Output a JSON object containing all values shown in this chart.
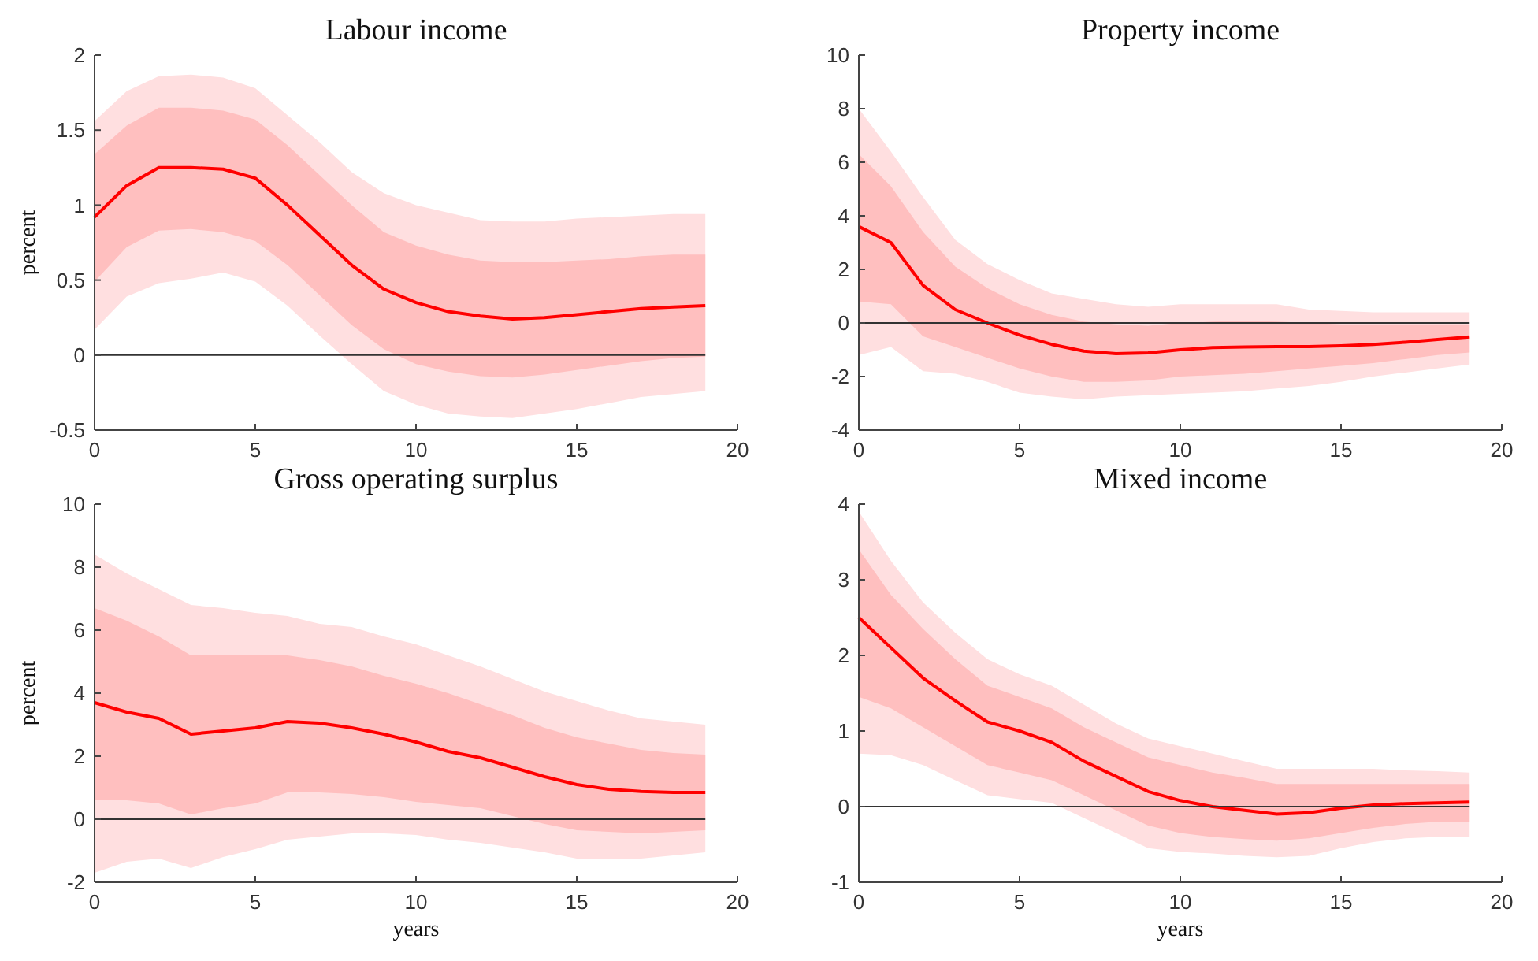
{
  "chart_data": [
    {
      "type": "line",
      "title": "Labour income",
      "ylabel": "percent",
      "x": [
        0,
        1,
        2,
        3,
        4,
        5,
        6,
        7,
        8,
        9,
        10,
        11,
        12,
        13,
        14,
        15,
        16,
        17,
        18,
        19
      ],
      "xlim": [
        0,
        20
      ],
      "xticks": [
        0,
        5,
        10,
        15,
        20
      ],
      "ylim": [
        -0.5,
        2
      ],
      "yticks": [
        -0.5,
        0,
        0.5,
        1,
        1.5,
        2
      ],
      "grid": false,
      "ref_lines": [
        {
          "axis": "y",
          "value": 0,
          "color": "#333333"
        }
      ],
      "series": [
        {
          "color": "#ffdfe0",
          "values": [
            null,
            null,
            null,
            null,
            null,
            null,
            null,
            null,
            null,
            null,
            null,
            null,
            null,
            null,
            null,
            null,
            null,
            null,
            null,
            null
          ],
          "lower": [
            0.17,
            0.39,
            0.48,
            0.51,
            0.55,
            0.49,
            0.33,
            0.13,
            -0.06,
            -0.24,
            -0.33,
            -0.39,
            -0.41,
            -0.42,
            -0.39,
            -0.36,
            -0.32,
            -0.28,
            -0.26,
            -0.24
          ],
          "upper": [
            1.56,
            1.76,
            1.86,
            1.87,
            1.85,
            1.78,
            1.6,
            1.42,
            1.22,
            1.08,
            1.0,
            0.95,
            0.9,
            0.89,
            0.89,
            0.91,
            0.92,
            0.93,
            0.94,
            0.94
          ]
        },
        {
          "color": "#ff0000",
          "values": [
            0.92,
            1.13,
            1.25,
            1.25,
            1.24,
            1.18,
            1.0,
            0.8,
            0.6,
            0.44,
            0.35,
            0.29,
            0.26,
            0.24,
            0.25,
            0.27,
            0.29,
            0.31,
            0.32,
            0.33
          ],
          "lower": [
            0.49,
            0.72,
            0.83,
            0.84,
            0.82,
            0.76,
            0.6,
            0.4,
            0.2,
            0.04,
            -0.06,
            -0.11,
            -0.14,
            -0.15,
            -0.13,
            -0.1,
            -0.07,
            -0.04,
            -0.02,
            -0.01
          ],
          "upper": [
            1.34,
            1.53,
            1.65,
            1.65,
            1.63,
            1.57,
            1.4,
            1.2,
            1.0,
            0.82,
            0.73,
            0.67,
            0.63,
            0.62,
            0.62,
            0.63,
            0.64,
            0.66,
            0.67,
            0.67
          ]
        }
      ]
    },
    {
      "type": "line",
      "title": "Property income",
      "x": [
        0,
        1,
        2,
        3,
        4,
        5,
        6,
        7,
        8,
        9,
        10,
        11,
        12,
        13,
        14,
        15,
        16,
        17,
        18,
        19
      ],
      "xlim": [
        0,
        20
      ],
      "xticks": [
        0,
        5,
        10,
        15,
        20
      ],
      "ylim": [
        -4,
        10
      ],
      "yticks": [
        -4,
        -2,
        0,
        2,
        4,
        6,
        8,
        10
      ],
      "grid": false,
      "ref_lines": [
        {
          "axis": "y",
          "value": 0,
          "color": "#333333"
        }
      ],
      "series": [
        {
          "color": "#ffdfe0",
          "values": [
            null,
            null,
            null,
            null,
            null,
            null,
            null,
            null,
            null,
            null,
            null,
            null,
            null,
            null,
            null,
            null,
            null,
            null,
            null,
            null
          ],
          "lower": [
            -1.2,
            -0.9,
            -1.8,
            -1.9,
            -2.2,
            -2.6,
            -2.75,
            -2.85,
            -2.75,
            -2.7,
            -2.65,
            -2.6,
            -2.55,
            -2.45,
            -2.35,
            -2.2,
            -2.0,
            -1.85,
            -1.7,
            -1.55
          ],
          "upper": [
            8.0,
            6.4,
            4.7,
            3.1,
            2.2,
            1.6,
            1.1,
            0.9,
            0.7,
            0.6,
            0.7,
            0.7,
            0.7,
            0.7,
            0.5,
            0.45,
            0.4,
            0.4,
            0.4,
            0.4
          ]
        },
        {
          "color": "#ff0000",
          "values": [
            3.6,
            3.0,
            1.4,
            0.5,
            0.0,
            -0.45,
            -0.8,
            -1.05,
            -1.15,
            -1.12,
            -1.0,
            -0.92,
            -0.9,
            -0.88,
            -0.88,
            -0.85,
            -0.8,
            -0.72,
            -0.62,
            -0.52
          ],
          "lower": [
            0.8,
            0.7,
            -0.5,
            -0.9,
            -1.3,
            -1.7,
            -2.0,
            -2.2,
            -2.2,
            -2.15,
            -2.0,
            -1.95,
            -1.9,
            -1.8,
            -1.7,
            -1.6,
            -1.5,
            -1.35,
            -1.2,
            -1.1
          ],
          "upper": [
            6.3,
            5.1,
            3.4,
            2.1,
            1.3,
            0.7,
            0.3,
            0.05,
            -0.05,
            -0.1,
            0.0,
            0.05,
            0.08,
            0.05,
            0.0,
            -0.05,
            -0.05,
            -0.05,
            -0.05,
            -0.05
          ]
        }
      ]
    },
    {
      "type": "line",
      "title": "Gross operating surplus",
      "xlabel": "years",
      "ylabel": "percent",
      "x": [
        0,
        1,
        2,
        3,
        4,
        5,
        6,
        7,
        8,
        9,
        10,
        11,
        12,
        13,
        14,
        15,
        16,
        17,
        18,
        19
      ],
      "xlim": [
        0,
        20
      ],
      "xticks": [
        0,
        5,
        10,
        15,
        20
      ],
      "ylim": [
        -2,
        10
      ],
      "yticks": [
        -2,
        0,
        2,
        4,
        6,
        8,
        10
      ],
      "grid": false,
      "ref_lines": [
        {
          "axis": "y",
          "value": 0,
          "color": "#333333"
        }
      ],
      "series": [
        {
          "color": "#ffdfe0",
          "values": [
            null,
            null,
            null,
            null,
            null,
            null,
            null,
            null,
            null,
            null,
            null,
            null,
            null,
            null,
            null,
            null,
            null,
            null,
            null,
            null
          ],
          "lower": [
            -1.7,
            -1.35,
            -1.25,
            -1.55,
            -1.2,
            -0.95,
            -0.65,
            -0.55,
            -0.45,
            -0.45,
            -0.5,
            -0.65,
            -0.75,
            -0.9,
            -1.05,
            -1.25,
            -1.25,
            -1.25,
            -1.15,
            -1.05
          ],
          "upper": [
            8.4,
            7.8,
            7.3,
            6.8,
            6.7,
            6.55,
            6.45,
            6.2,
            6.1,
            5.8,
            5.55,
            5.2,
            4.85,
            4.45,
            4.05,
            3.75,
            3.45,
            3.2,
            3.1,
            3.0
          ]
        },
        {
          "color": "#ff0000",
          "values": [
            3.7,
            3.4,
            3.2,
            2.7,
            2.8,
            2.9,
            3.1,
            3.05,
            2.9,
            2.7,
            2.45,
            2.15,
            1.95,
            1.65,
            1.35,
            1.1,
            0.95,
            0.88,
            0.85,
            0.85
          ],
          "lower": [
            0.6,
            0.6,
            0.5,
            0.15,
            0.35,
            0.5,
            0.85,
            0.85,
            0.8,
            0.7,
            0.55,
            0.45,
            0.35,
            0.1,
            -0.15,
            -0.35,
            -0.4,
            -0.45,
            -0.4,
            -0.35
          ],
          "upper": [
            6.7,
            6.3,
            5.8,
            5.2,
            5.2,
            5.2,
            5.2,
            5.05,
            4.85,
            4.55,
            4.3,
            4.0,
            3.65,
            3.3,
            2.9,
            2.6,
            2.4,
            2.2,
            2.1,
            2.05
          ]
        }
      ]
    },
    {
      "type": "line",
      "title": "Mixed income",
      "xlabel": "years",
      "x": [
        0,
        1,
        2,
        3,
        4,
        5,
        6,
        7,
        8,
        9,
        10,
        11,
        12,
        13,
        14,
        15,
        16,
        17,
        18,
        19
      ],
      "xlim": [
        0,
        20
      ],
      "xticks": [
        0,
        5,
        10,
        15,
        20
      ],
      "ylim": [
        -1,
        4
      ],
      "yticks": [
        -1,
        0,
        1,
        2,
        3,
        4
      ],
      "grid": false,
      "ref_lines": [
        {
          "axis": "y",
          "value": 0,
          "color": "#333333"
        }
      ],
      "series": [
        {
          "color": "#ffdfe0",
          "values": [
            null,
            null,
            null,
            null,
            null,
            null,
            null,
            null,
            null,
            null,
            null,
            null,
            null,
            null,
            null,
            null,
            null,
            null,
            null,
            null
          ],
          "lower": [
            0.7,
            0.68,
            0.55,
            0.35,
            0.15,
            0.1,
            0.05,
            -0.15,
            -0.35,
            -0.55,
            -0.6,
            -0.62,
            -0.65,
            -0.67,
            -0.65,
            -0.55,
            -0.47,
            -0.42,
            -0.4,
            -0.4
          ],
          "upper": [
            3.9,
            3.25,
            2.7,
            2.3,
            1.95,
            1.75,
            1.6,
            1.35,
            1.1,
            0.9,
            0.8,
            0.7,
            0.6,
            0.5,
            0.5,
            0.5,
            0.5,
            0.48,
            0.47,
            0.45
          ]
        },
        {
          "color": "#ff0000",
          "values": [
            2.5,
            2.1,
            1.7,
            1.4,
            1.12,
            1.0,
            0.85,
            0.6,
            0.4,
            0.2,
            0.08,
            0.0,
            -0.05,
            -0.1,
            -0.08,
            -0.02,
            0.02,
            0.04,
            0.05,
            0.06
          ],
          "lower": [
            1.45,
            1.3,
            1.05,
            0.8,
            0.55,
            0.45,
            0.35,
            0.15,
            -0.05,
            -0.25,
            -0.35,
            -0.4,
            -0.43,
            -0.45,
            -0.42,
            -0.35,
            -0.28,
            -0.23,
            -0.2,
            -0.2
          ],
          "upper": [
            3.4,
            2.8,
            2.35,
            1.95,
            1.6,
            1.45,
            1.3,
            1.05,
            0.85,
            0.65,
            0.55,
            0.45,
            0.38,
            0.3,
            0.3,
            0.3,
            0.3,
            0.3,
            0.3,
            0.3
          ]
        }
      ]
    }
  ]
}
